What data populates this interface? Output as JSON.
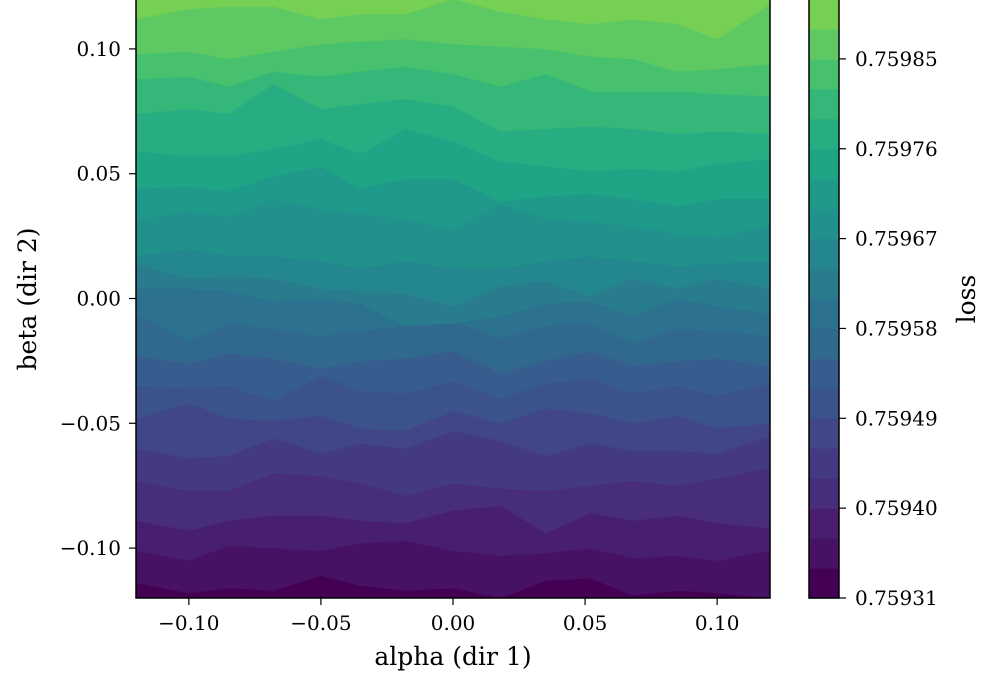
{
  "chart_data": {
    "type": "contour",
    "xlabel": "alpha (dir 1)",
    "ylabel": "beta (dir 2)",
    "colorbar_label": "loss",
    "xlim": [
      -0.12,
      0.12
    ],
    "ylim": [
      -0.12,
      0.12
    ],
    "x_ticks": [
      {
        "value": -0.1,
        "label": "−0.10"
      },
      {
        "value": -0.05,
        "label": "−0.05"
      },
      {
        "value": 0.0,
        "label": "0.00"
      },
      {
        "value": 0.05,
        "label": "0.05"
      },
      {
        "value": 0.1,
        "label": "0.10"
      }
    ],
    "y_ticks": [
      {
        "value": -0.1,
        "label": "−0.10"
      },
      {
        "value": -0.05,
        "label": "−0.05"
      },
      {
        "value": 0.0,
        "label": "0.00"
      },
      {
        "value": 0.05,
        "label": "0.05"
      },
      {
        "value": 0.1,
        "label": "0.10"
      }
    ],
    "colorbar_range": [
      0.75931,
      0.75991
    ],
    "colorbar_ticks": [
      {
        "value": 0.75931,
        "label": "0.75931"
      },
      {
        "value": 0.7594,
        "label": "0.75940"
      },
      {
        "value": 0.75949,
        "label": "0.75949"
      },
      {
        "value": 0.75958,
        "label": "0.75958"
      },
      {
        "value": 0.75967,
        "label": "0.75967"
      },
      {
        "value": 0.75976,
        "label": "0.75976"
      },
      {
        "value": 0.75985,
        "label": "0.75985"
      }
    ],
    "levels": [
      0.75931,
      0.75934,
      0.75937,
      0.7594,
      0.75943,
      0.75946,
      0.75949,
      0.75952,
      0.75955,
      0.75958,
      0.75961,
      0.75964,
      0.75967,
      0.7597,
      0.75973,
      0.75976,
      0.75979,
      0.75982,
      0.75985,
      0.75988,
      0.75991
    ],
    "colors": [
      "#440154",
      "#471164",
      "#481f70",
      "#472d7b",
      "#443a83",
      "#404688",
      "#3b528b",
      "#365d8d",
      "#31688e",
      "#2c728e",
      "#287c8e",
      "#24868e",
      "#21918c",
      "#1f9a8a",
      "#20a486",
      "#27ad81",
      "#35b779",
      "#47c16e",
      "#5ec962",
      "#75d054",
      "#8fd744"
    ],
    "band_colors_note": "viridis",
    "contour_lines": [
      {
        "level": 0.75934,
        "x": [
          -0.12,
          -0.1,
          -0.085,
          -0.068,
          -0.05,
          -0.035,
          -0.018,
          0.0,
          0.018,
          0.035,
          0.052,
          0.068,
          0.085,
          0.1,
          0.12
        ],
        "y": [
          -0.114,
          -0.118,
          -0.116,
          -0.117,
          -0.111,
          -0.115,
          -0.117,
          -0.116,
          -0.12,
          -0.113,
          -0.112,
          -0.119,
          -0.117,
          -0.118,
          -0.12
        ]
      },
      {
        "level": 0.75937,
        "x": [
          -0.12,
          -0.1,
          -0.085,
          -0.068,
          -0.05,
          -0.035,
          -0.018,
          0.0,
          0.018,
          0.035,
          0.052,
          0.068,
          0.085,
          0.1,
          0.12
        ],
        "y": [
          -0.101,
          -0.105,
          -0.099,
          -0.1,
          -0.101,
          -0.098,
          -0.097,
          -0.101,
          -0.103,
          -0.102,
          -0.1,
          -0.104,
          -0.103,
          -0.105,
          -0.101
        ]
      },
      {
        "level": 0.7594,
        "x": [
          -0.12,
          -0.1,
          -0.085,
          -0.068,
          -0.05,
          -0.035,
          -0.018,
          0.0,
          0.018,
          0.035,
          0.052,
          0.068,
          0.085,
          0.1,
          0.12
        ],
        "y": [
          -0.089,
          -0.093,
          -0.089,
          -0.087,
          -0.087,
          -0.089,
          -0.09,
          -0.085,
          -0.083,
          -0.094,
          -0.086,
          -0.089,
          -0.087,
          -0.09,
          -0.092
        ]
      },
      {
        "level": 0.75943,
        "x": [
          -0.12,
          -0.1,
          -0.085,
          -0.068,
          -0.05,
          -0.035,
          -0.018,
          0.0,
          0.018,
          0.035,
          0.052,
          0.068,
          0.085,
          0.1,
          0.12
        ],
        "y": [
          -0.073,
          -0.077,
          -0.077,
          -0.07,
          -0.071,
          -0.074,
          -0.079,
          -0.074,
          -0.076,
          -0.077,
          -0.075,
          -0.073,
          -0.075,
          -0.072,
          -0.068
        ]
      },
      {
        "level": 0.75946,
        "x": [
          -0.12,
          -0.1,
          -0.085,
          -0.068,
          -0.05,
          -0.035,
          -0.018,
          0.0,
          0.018,
          0.035,
          0.052,
          0.068,
          0.085,
          0.1,
          0.12
        ],
        "y": [
          -0.06,
          -0.064,
          -0.063,
          -0.056,
          -0.062,
          -0.058,
          -0.06,
          -0.053,
          -0.057,
          -0.063,
          -0.058,
          -0.061,
          -0.061,
          -0.062,
          -0.055
        ]
      },
      {
        "level": 0.75949,
        "x": [
          -0.12,
          -0.1,
          -0.085,
          -0.068,
          -0.05,
          -0.035,
          -0.018,
          0.0,
          0.018,
          0.035,
          0.052,
          0.068,
          0.085,
          0.1,
          0.12
        ],
        "y": [
          -0.048,
          -0.042,
          -0.048,
          -0.049,
          -0.047,
          -0.052,
          -0.053,
          -0.045,
          -0.05,
          -0.044,
          -0.046,
          -0.05,
          -0.047,
          -0.052,
          -0.05
        ]
      },
      {
        "level": 0.75952,
        "x": [
          -0.12,
          -0.1,
          -0.085,
          -0.068,
          -0.05,
          -0.035,
          -0.018,
          0.0,
          0.018,
          0.035,
          0.052,
          0.068,
          0.085,
          0.1,
          0.12
        ],
        "y": [
          -0.035,
          -0.036,
          -0.035,
          -0.041,
          -0.031,
          -0.037,
          -0.038,
          -0.033,
          -0.04,
          -0.034,
          -0.032,
          -0.038,
          -0.035,
          -0.039,
          -0.034
        ]
      },
      {
        "level": 0.75955,
        "x": [
          -0.12,
          -0.1,
          -0.085,
          -0.068,
          -0.05,
          -0.035,
          -0.018,
          0.0,
          0.018,
          0.035,
          0.052,
          0.068,
          0.085,
          0.1,
          0.12
        ],
        "y": [
          -0.023,
          -0.026,
          -0.022,
          -0.024,
          -0.028,
          -0.025,
          -0.024,
          -0.021,
          -0.03,
          -0.025,
          -0.021,
          -0.027,
          -0.025,
          -0.024,
          -0.027
        ]
      },
      {
        "level": 0.75958,
        "x": [
          -0.12,
          -0.1,
          -0.085,
          -0.068,
          -0.05,
          -0.035,
          -0.018,
          0.0,
          0.018,
          0.035,
          0.052,
          0.068,
          0.085,
          0.1,
          0.12
        ],
        "y": [
          -0.006,
          -0.017,
          -0.01,
          -0.012,
          -0.015,
          -0.013,
          -0.011,
          -0.009,
          -0.016,
          -0.011,
          -0.01,
          -0.018,
          -0.012,
          -0.013,
          -0.015
        ]
      },
      {
        "level": 0.75961,
        "x": [
          -0.12,
          -0.1,
          -0.085,
          -0.068,
          -0.05,
          -0.035,
          -0.018,
          0.0,
          0.018,
          0.035,
          0.052,
          0.068,
          0.085,
          0.1,
          0.12
        ],
        "y": [
          0.004,
          0.004,
          0.003,
          -0.001,
          0.0,
          -0.002,
          -0.011,
          -0.01,
          -0.007,
          -0.002,
          -0.001,
          -0.007,
          0.0,
          -0.003,
          -0.006
        ]
      },
      {
        "level": 0.75964,
        "x": [
          -0.12,
          -0.1,
          -0.085,
          -0.068,
          -0.05,
          -0.035,
          -0.018,
          0.0,
          0.018,
          0.035,
          0.052,
          0.068,
          0.085,
          0.1,
          0.12
        ],
        "y": [
          0.014,
          0.008,
          0.009,
          0.008,
          0.004,
          0.003,
          0.002,
          -0.003,
          0.005,
          0.007,
          0.001,
          0.008,
          0.004,
          0.008,
          0.004
        ]
      },
      {
        "level": 0.75967,
        "x": [
          -0.12,
          -0.1,
          -0.085,
          -0.068,
          -0.05,
          -0.035,
          -0.018,
          0.0,
          0.018,
          0.035,
          0.052,
          0.068,
          0.085,
          0.1,
          0.12
        ],
        "y": [
          0.017,
          0.02,
          0.017,
          0.017,
          0.015,
          0.012,
          0.015,
          0.012,
          0.012,
          0.015,
          0.017,
          0.015,
          0.013,
          0.014,
          0.015
        ]
      },
      {
        "level": 0.7597,
        "x": [
          -0.12,
          -0.1,
          -0.085,
          -0.068,
          -0.05,
          -0.035,
          -0.018,
          0.0,
          0.018,
          0.035,
          0.052,
          0.068,
          0.085,
          0.1,
          0.12
        ],
        "y": [
          0.032,
          0.035,
          0.033,
          0.04,
          0.036,
          0.034,
          0.032,
          0.028,
          0.038,
          0.032,
          0.031,
          0.029,
          0.026,
          0.025,
          0.029
        ]
      },
      {
        "level": 0.75973,
        "x": [
          -0.12,
          -0.1,
          -0.085,
          -0.068,
          -0.05,
          -0.035,
          -0.018,
          0.0,
          0.018,
          0.035,
          0.052,
          0.068,
          0.085,
          0.1,
          0.12
        ],
        "y": [
          0.044,
          0.045,
          0.043,
          0.049,
          0.053,
          0.044,
          0.048,
          0.048,
          0.039,
          0.041,
          0.042,
          0.04,
          0.037,
          0.04,
          0.04
        ]
      },
      {
        "level": 0.75976,
        "x": [
          -0.12,
          -0.1,
          -0.085,
          -0.068,
          -0.05,
          -0.035,
          -0.018,
          0.0,
          0.018,
          0.035,
          0.052,
          0.068,
          0.085,
          0.1,
          0.12
        ],
        "y": [
          0.059,
          0.057,
          0.057,
          0.06,
          0.064,
          0.058,
          0.068,
          0.063,
          0.055,
          0.053,
          0.051,
          0.052,
          0.051,
          0.054,
          0.056
        ]
      },
      {
        "level": 0.75979,
        "x": [
          -0.12,
          -0.1,
          -0.085,
          -0.068,
          -0.05,
          -0.035,
          -0.018,
          0.0,
          0.018,
          0.035,
          0.052,
          0.068,
          0.085,
          0.1,
          0.12
        ],
        "y": [
          0.074,
          0.076,
          0.074,
          0.086,
          0.076,
          0.078,
          0.08,
          0.077,
          0.067,
          0.068,
          0.069,
          0.068,
          0.066,
          0.067,
          0.066
        ]
      },
      {
        "level": 0.75982,
        "x": [
          -0.12,
          -0.1,
          -0.085,
          -0.068,
          -0.05,
          -0.035,
          -0.018,
          0.0,
          0.018,
          0.035,
          0.052,
          0.068,
          0.085,
          0.1,
          0.12
        ],
        "y": [
          0.088,
          0.089,
          0.085,
          0.091,
          0.089,
          0.091,
          0.093,
          0.09,
          0.085,
          0.09,
          0.083,
          0.083,
          0.083,
          0.082,
          0.081
        ]
      },
      {
        "level": 0.75985,
        "x": [
          -0.12,
          -0.1,
          -0.085,
          -0.068,
          -0.05,
          -0.035,
          -0.018,
          0.0,
          0.018,
          0.035,
          0.052,
          0.068,
          0.085,
          0.1,
          0.12
        ],
        "y": [
          0.098,
          0.099,
          0.096,
          0.099,
          0.102,
          0.103,
          0.104,
          0.102,
          0.101,
          0.1,
          0.097,
          0.096,
          0.091,
          0.092,
          0.094
        ]
      },
      {
        "level": 0.75988,
        "x": [
          -0.12,
          -0.1,
          -0.085,
          -0.068,
          -0.05,
          -0.035,
          -0.018,
          0.0,
          0.018,
          0.035,
          0.052,
          0.068,
          0.085,
          0.1,
          0.12
        ],
        "y": [
          0.112,
          0.116,
          0.117,
          0.117,
          0.112,
          0.114,
          0.114,
          0.12,
          0.115,
          0.112,
          0.11,
          0.112,
          0.11,
          0.104,
          0.118
        ]
      }
    ]
  }
}
